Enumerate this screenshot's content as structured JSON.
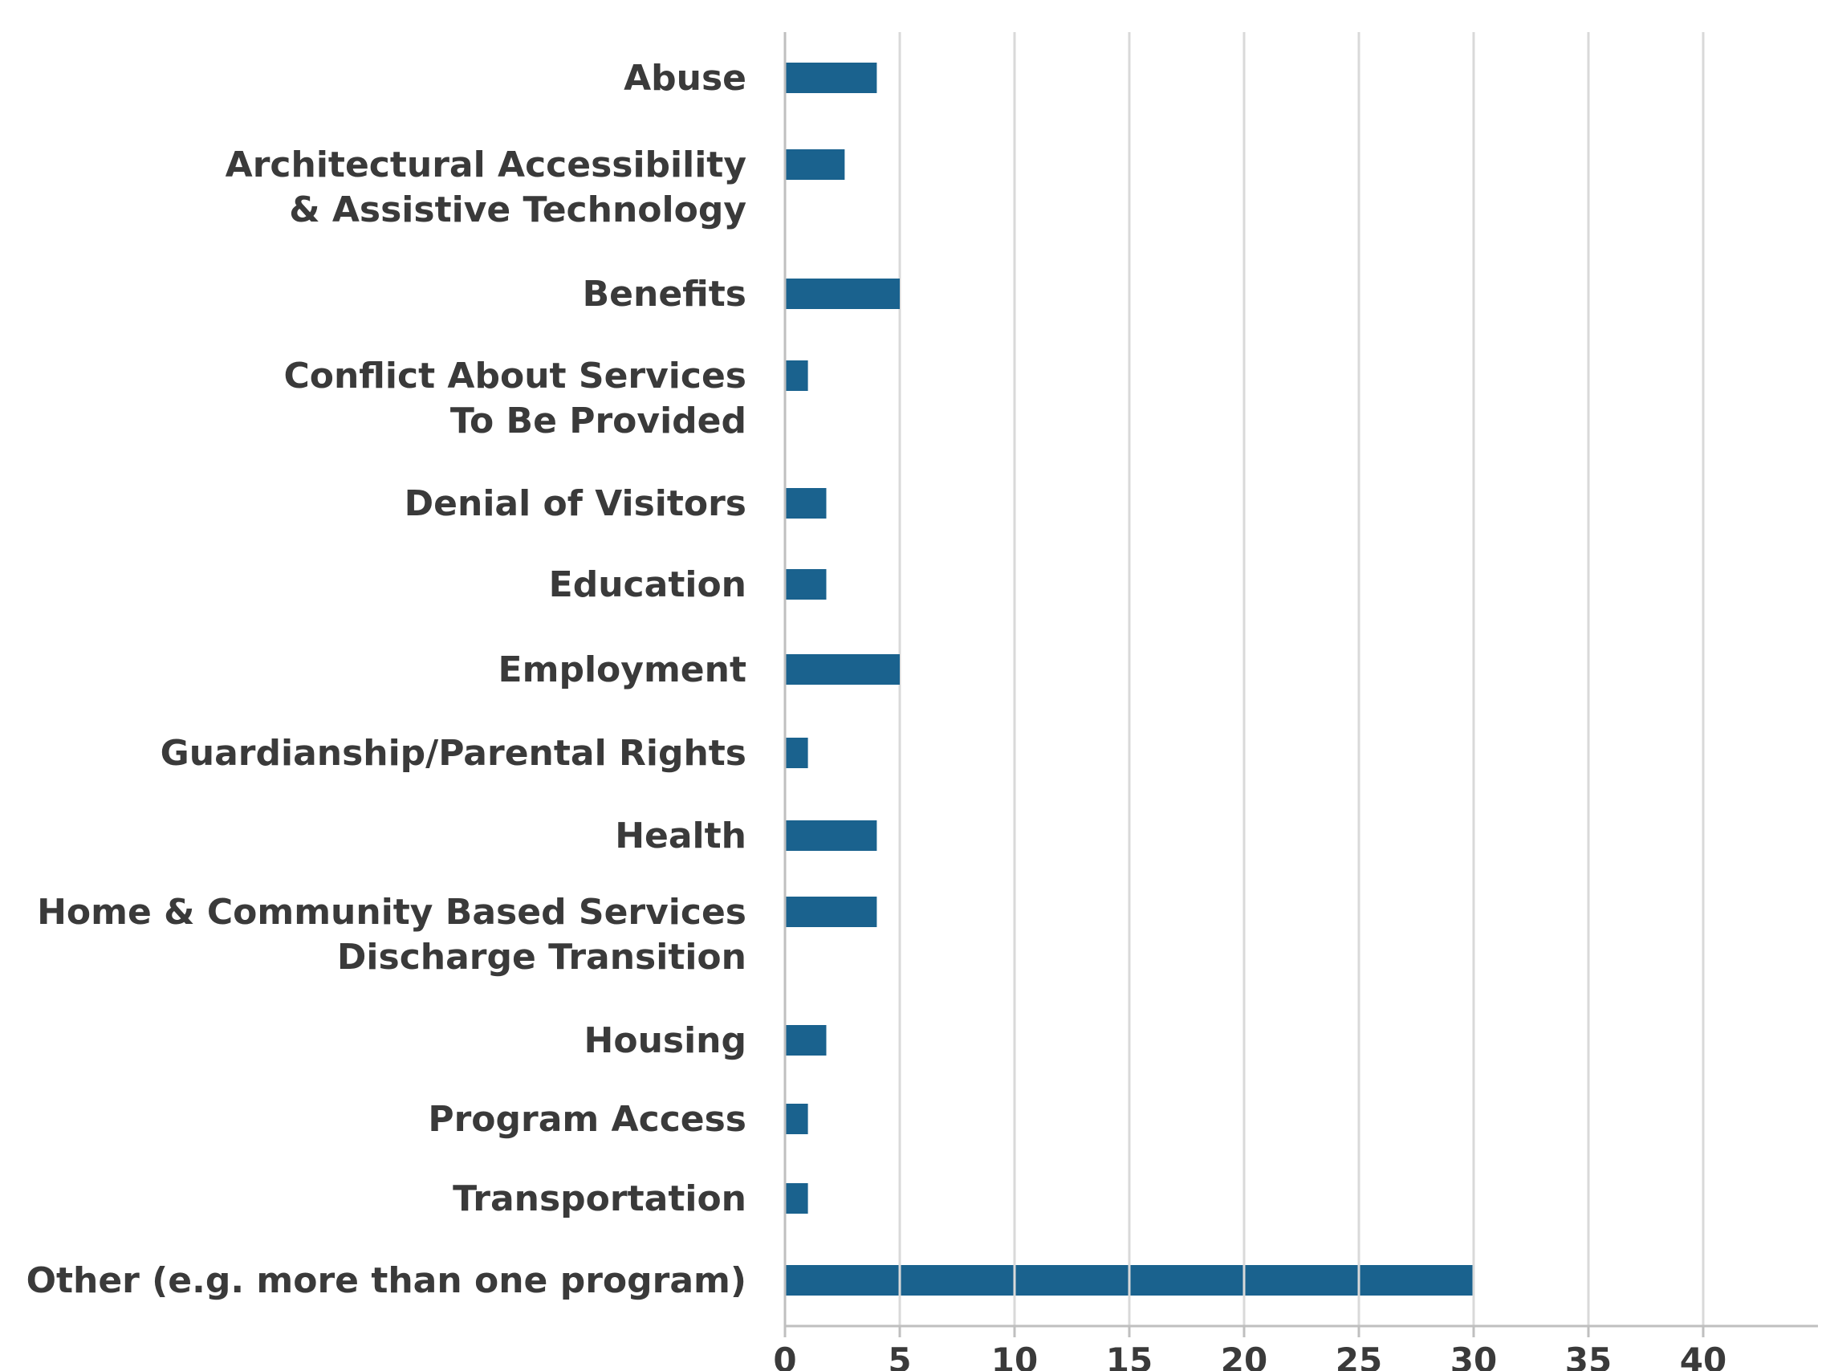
{
  "chart_data": {
    "type": "bar",
    "orientation": "horizontal",
    "categories": [
      [
        "Abuse"
      ],
      [
        "Architectural Accessibility",
        "& Assistive Technology"
      ],
      [
        "Benefits"
      ],
      [
        "Conflict About Services",
        "To Be Provided"
      ],
      [
        "Denial of Visitors"
      ],
      [
        "Education"
      ],
      [
        "Employment"
      ],
      [
        "Guardianship/Parental Rights"
      ],
      [
        "Health"
      ],
      [
        "Home & Community Based Services",
        "Discharge Transition"
      ],
      [
        "Housing"
      ],
      [
        "Program Access"
      ],
      [
        "Transportation"
      ],
      [
        "Other (e.g. more than one program)"
      ]
    ],
    "values": [
      4,
      2.6,
      5,
      1,
      1.8,
      1.8,
      5,
      1,
      4,
      4,
      1.8,
      1,
      1,
      30
    ],
    "xticks": [
      0,
      5,
      10,
      15,
      20,
      25,
      30,
      35,
      40
    ],
    "xlim": [
      0,
      45
    ],
    "grid": "vertical",
    "legend": "none",
    "colors": {
      "bar": "#1a628e",
      "grid": "#d9d9d9",
      "axis": "#bfbfbf",
      "text": "#3a3a3a"
    }
  }
}
